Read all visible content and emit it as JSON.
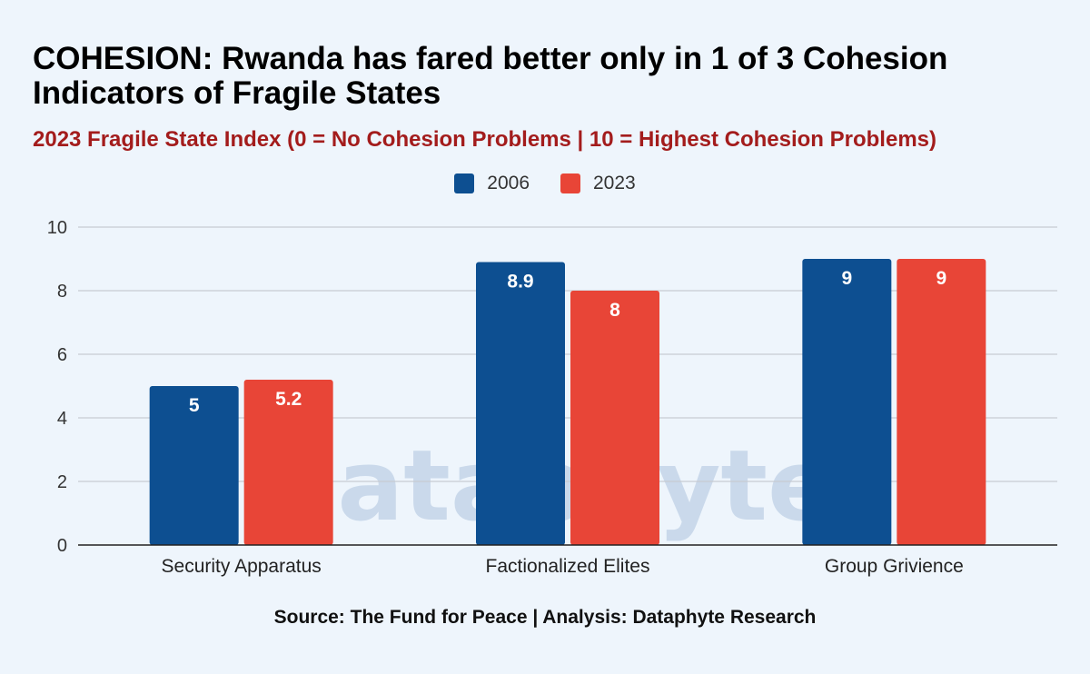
{
  "header": {
    "title": "COHESION: Rwanda has fared better only in 1 of 3 Cohesion Indicators of Fragile States",
    "subtitle": "2023 Fragile State Index (0 = No Cohesion Problems | 10 = Highest Cohesion Problems)"
  },
  "watermark": "Dataphyte",
  "footer": {
    "source": "Source: The Fund for Peace | Analysis: Dataphyte Research"
  },
  "colors": {
    "series_2006": "#0d4f91",
    "series_2023": "#e84537",
    "subtitle": "#a31c1c",
    "background": "#eef5fc"
  },
  "chart_data": {
    "type": "bar",
    "categories": [
      "Security Apparatus",
      "Factionalized Elites",
      "Group Grivience"
    ],
    "series": [
      {
        "name": "2006",
        "values": [
          5,
          8.9,
          9
        ]
      },
      {
        "name": "2023",
        "values": [
          5.2,
          8,
          9
        ]
      }
    ],
    "data_labels": [
      [
        "5",
        "8.9",
        "9"
      ],
      [
        "5.2",
        "8",
        "9"
      ]
    ],
    "y_ticks": [
      0,
      2,
      4,
      6,
      8,
      10
    ],
    "ylim": [
      0,
      10
    ],
    "grid": true,
    "legend_position": "top-center"
  }
}
